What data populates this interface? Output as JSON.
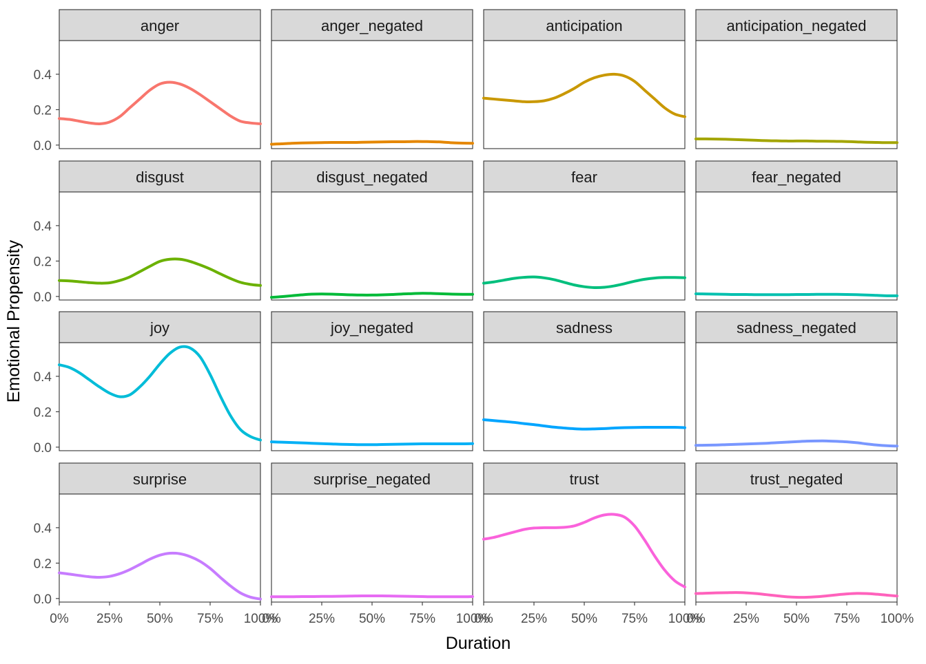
{
  "chart_data": {
    "type": "line",
    "facet": "wrap",
    "ncol": 4,
    "xlabel": "Duration",
    "ylabel": "Emotional Propensity",
    "xlim": [
      0,
      100
    ],
    "ylim": [
      -0.02,
      0.59
    ],
    "x_ticks": [
      0,
      25,
      50,
      75,
      100
    ],
    "x_tick_labels": [
      "0%",
      "25%",
      "50%",
      "75%",
      "100%"
    ],
    "y_ticks": [
      0.0,
      0.2,
      0.4
    ],
    "y_tick_labels": [
      "0.0",
      "0.2",
      "0.4"
    ],
    "grid": false,
    "x": [
      0,
      5,
      10,
      15,
      20,
      25,
      30,
      35,
      40,
      45,
      50,
      55,
      60,
      65,
      70,
      75,
      80,
      85,
      90,
      95,
      100
    ],
    "series": [
      {
        "name": "anger",
        "color": "#F8766D",
        "values": [
          0.15,
          0.145,
          0.135,
          0.125,
          0.12,
          0.13,
          0.16,
          0.21,
          0.26,
          0.31,
          0.345,
          0.355,
          0.345,
          0.32,
          0.285,
          0.245,
          0.205,
          0.165,
          0.135,
          0.125,
          0.12
        ]
      },
      {
        "name": "anger_negated",
        "color": "#E58700",
        "values": [
          0.005,
          0.007,
          0.01,
          0.012,
          0.013,
          0.014,
          0.015,
          0.015,
          0.015,
          0.016,
          0.017,
          0.018,
          0.019,
          0.019,
          0.02,
          0.02,
          0.019,
          0.017,
          0.013,
          0.011,
          0.01
        ]
      },
      {
        "name": "anticipation",
        "color": "#C99800",
        "values": [
          0.265,
          0.26,
          0.255,
          0.25,
          0.245,
          0.245,
          0.25,
          0.265,
          0.29,
          0.32,
          0.355,
          0.38,
          0.395,
          0.4,
          0.39,
          0.36,
          0.31,
          0.26,
          0.21,
          0.175,
          0.16
        ]
      },
      {
        "name": "anticipation_negated",
        "color": "#A3A500",
        "values": [
          0.035,
          0.035,
          0.034,
          0.033,
          0.031,
          0.029,
          0.027,
          0.025,
          0.024,
          0.023,
          0.023,
          0.023,
          0.022,
          0.022,
          0.021,
          0.02,
          0.018,
          0.016,
          0.015,
          0.014,
          0.014
        ]
      },
      {
        "name": "disgust",
        "color": "#6BB100",
        "values": [
          0.09,
          0.088,
          0.083,
          0.078,
          0.075,
          0.077,
          0.09,
          0.11,
          0.14,
          0.17,
          0.198,
          0.21,
          0.21,
          0.198,
          0.178,
          0.155,
          0.128,
          0.102,
          0.08,
          0.068,
          0.062
        ]
      },
      {
        "name": "disgust_negated",
        "color": "#00BA38",
        "values": [
          -0.005,
          -0.001,
          0.004,
          0.009,
          0.013,
          0.014,
          0.013,
          0.011,
          0.009,
          0.008,
          0.008,
          0.009,
          0.011,
          0.014,
          0.016,
          0.018,
          0.017,
          0.015,
          0.013,
          0.012,
          0.012
        ]
      },
      {
        "name": "fear",
        "color": "#00BF7D",
        "values": [
          0.075,
          0.082,
          0.092,
          0.102,
          0.108,
          0.11,
          0.105,
          0.095,
          0.08,
          0.065,
          0.055,
          0.05,
          0.052,
          0.06,
          0.072,
          0.086,
          0.097,
          0.104,
          0.107,
          0.107,
          0.106
        ]
      },
      {
        "name": "fear_negated",
        "color": "#00C0AF",
        "values": [
          0.015,
          0.014,
          0.013,
          0.012,
          0.011,
          0.011,
          0.01,
          0.01,
          0.01,
          0.01,
          0.011,
          0.011,
          0.012,
          0.012,
          0.012,
          0.011,
          0.01,
          0.008,
          0.006,
          0.004,
          0.004
        ]
      },
      {
        "name": "joy",
        "color": "#00BCD8",
        "values": [
          0.465,
          0.45,
          0.42,
          0.38,
          0.34,
          0.305,
          0.285,
          0.295,
          0.34,
          0.4,
          0.47,
          0.53,
          0.565,
          0.56,
          0.51,
          0.41,
          0.29,
          0.18,
          0.1,
          0.06,
          0.04
        ]
      },
      {
        "name": "joy_negated",
        "color": "#00B0F6",
        "values": [
          0.03,
          0.028,
          0.026,
          0.024,
          0.022,
          0.02,
          0.018,
          0.016,
          0.015,
          0.014,
          0.014,
          0.015,
          0.016,
          0.017,
          0.018,
          0.019,
          0.019,
          0.019,
          0.019,
          0.019,
          0.02
        ]
      },
      {
        "name": "sadness",
        "color": "#00A5FF",
        "values": [
          0.155,
          0.15,
          0.145,
          0.14,
          0.133,
          0.127,
          0.12,
          0.113,
          0.108,
          0.104,
          0.102,
          0.103,
          0.105,
          0.108,
          0.11,
          0.111,
          0.112,
          0.112,
          0.112,
          0.112,
          0.11
        ]
      },
      {
        "name": "sadness_negated",
        "color": "#7997FF",
        "values": [
          0.01,
          0.011,
          0.012,
          0.014,
          0.016,
          0.018,
          0.02,
          0.022,
          0.025,
          0.028,
          0.031,
          0.034,
          0.035,
          0.035,
          0.033,
          0.03,
          0.025,
          0.018,
          0.012,
          0.008,
          0.006
        ]
      },
      {
        "name": "surprise",
        "color": "#C77CFF",
        "values": [
          0.145,
          0.138,
          0.13,
          0.123,
          0.12,
          0.125,
          0.14,
          0.163,
          0.192,
          0.222,
          0.245,
          0.256,
          0.253,
          0.237,
          0.21,
          0.17,
          0.12,
          0.072,
          0.032,
          0.008,
          -0.003
        ]
      },
      {
        "name": "surprise_negated",
        "color": "#E76BF3",
        "values": [
          0.01,
          0.01,
          0.01,
          0.011,
          0.011,
          0.012,
          0.012,
          0.013,
          0.014,
          0.015,
          0.015,
          0.015,
          0.014,
          0.013,
          0.012,
          0.011,
          0.01,
          0.01,
          0.01,
          0.01,
          0.011
        ]
      },
      {
        "name": "trust",
        "color": "#FA62DB",
        "values": [
          0.335,
          0.345,
          0.36,
          0.375,
          0.39,
          0.398,
          0.4,
          0.4,
          0.402,
          0.41,
          0.43,
          0.455,
          0.472,
          0.475,
          0.46,
          0.41,
          0.33,
          0.24,
          0.16,
          0.1,
          0.065
        ]
      },
      {
        "name": "trust_negated",
        "color": "#FF62BC",
        "values": [
          0.028,
          0.03,
          0.032,
          0.033,
          0.034,
          0.032,
          0.028,
          0.022,
          0.016,
          0.01,
          0.007,
          0.007,
          0.01,
          0.015,
          0.021,
          0.026,
          0.029,
          0.028,
          0.024,
          0.019,
          0.014
        ]
      }
    ]
  }
}
